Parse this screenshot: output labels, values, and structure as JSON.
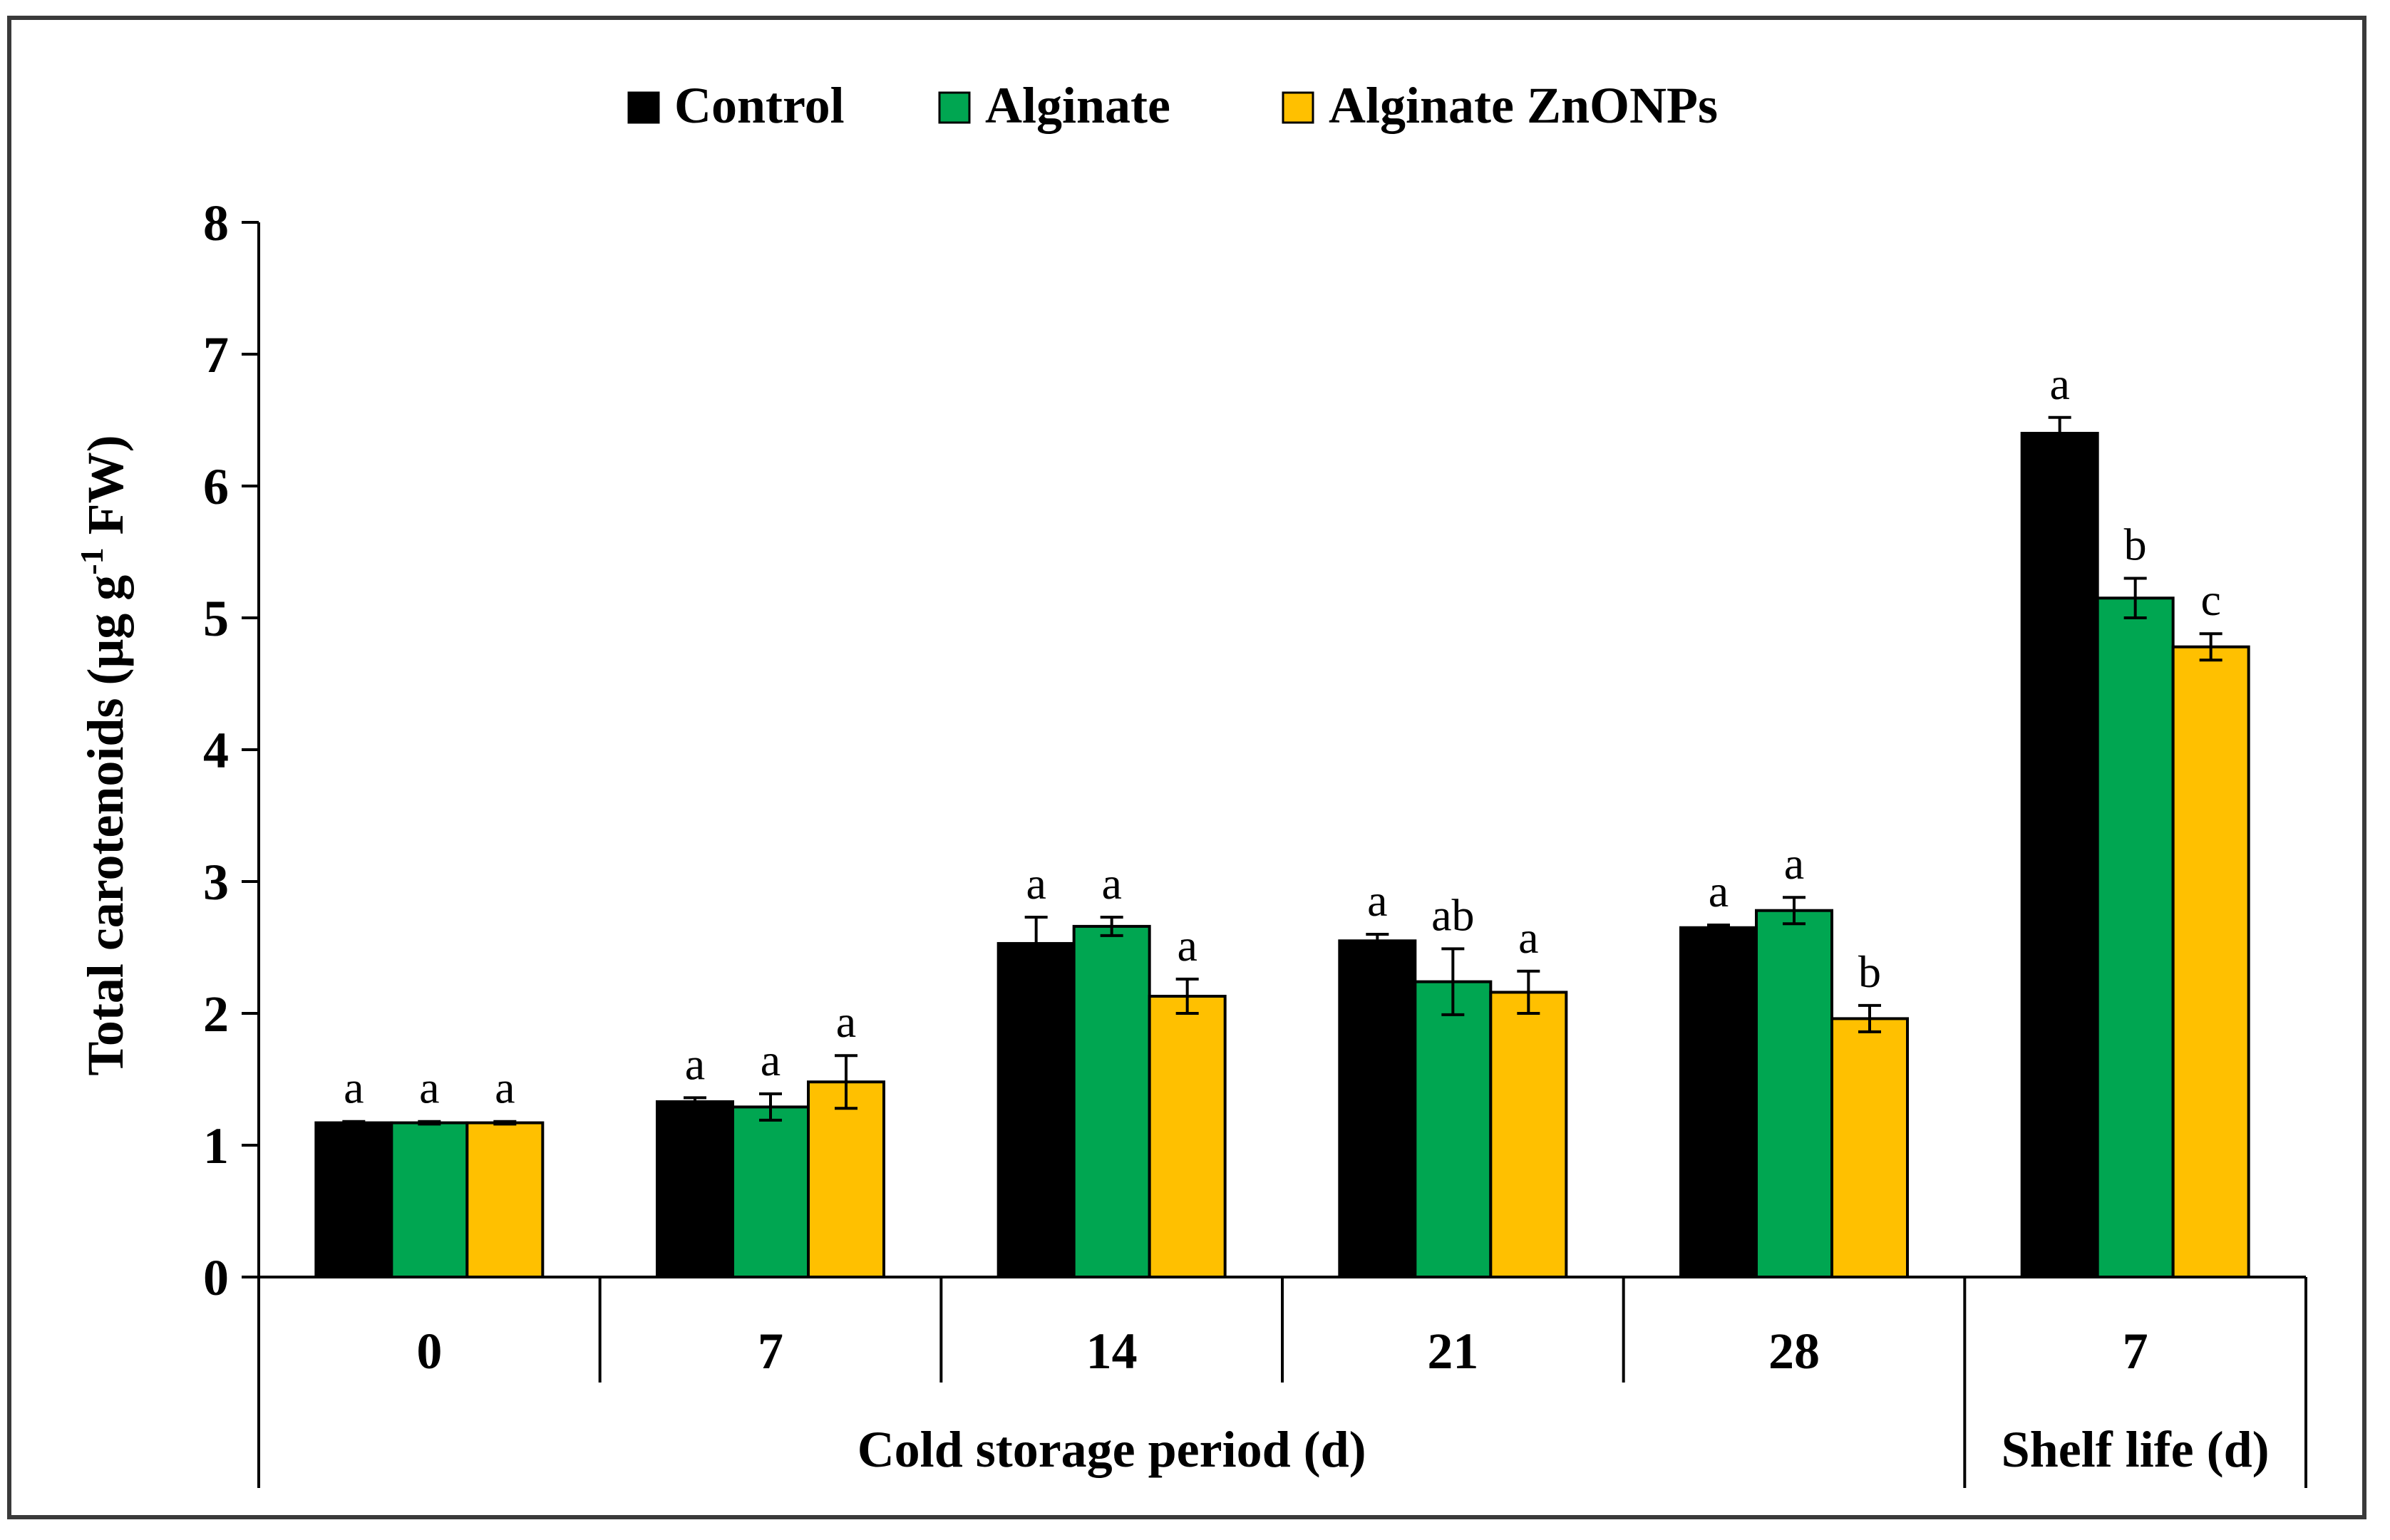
{
  "chart_data": {
    "type": "bar",
    "ylabel_main": "Total carotenoids (μg g",
    "ylabel_sup": "-1",
    "ylabel_tail": " FW)",
    "ylim": [
      0,
      8
    ],
    "yticks": [
      "0",
      "1",
      "2",
      "3",
      "4",
      "5",
      "6",
      "7",
      "8"
    ],
    "categories": [
      "0",
      "7",
      "14",
      "21",
      "28",
      "7"
    ],
    "groups": [
      {
        "label": "Cold storage period (d)",
        "span": [
          0,
          4
        ]
      },
      {
        "label": "Shelf life (d)",
        "span": [
          5,
          5
        ]
      }
    ],
    "series": [
      {
        "name": "Control",
        "color": "#000000",
        "values": [
          1.17,
          1.33,
          2.53,
          2.55,
          2.65,
          6.4
        ],
        "errors": [
          0.01,
          0.03,
          0.2,
          0.05,
          0.02,
          0.12
        ],
        "letters": [
          "a",
          "a",
          "a",
          "a",
          "a",
          "a"
        ]
      },
      {
        "name": "Alginate",
        "color": "#00a651",
        "values": [
          1.17,
          1.29,
          2.66,
          2.24,
          2.78,
          5.15
        ],
        "errors": [
          0.01,
          0.1,
          0.07,
          0.25,
          0.1,
          0.15
        ],
        "letters": [
          "a",
          "a",
          "a",
          "ab",
          "a",
          "b"
        ]
      },
      {
        "name": "Alginate ZnONPs",
        "color": "#ffc000",
        "values": [
          1.17,
          1.48,
          2.13,
          2.16,
          1.96,
          4.78
        ],
        "errors": [
          0.01,
          0.2,
          0.13,
          0.16,
          0.1,
          0.1
        ],
        "letters": [
          "a",
          "a",
          "a",
          "a",
          "b",
          "c"
        ]
      }
    ]
  }
}
